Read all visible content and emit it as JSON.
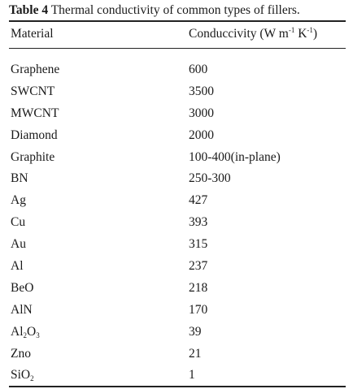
{
  "caption": {
    "label": "Table 4",
    "text": "Thermal conductivity of common types of fillers."
  },
  "header": {
    "material": "Material",
    "value_prefix": "Conduccivity (W m",
    "value_sup1": "-1",
    "value_mid": " K",
    "value_sup2": "-1",
    "value_suffix": ")"
  },
  "rows": [
    {
      "material": "Graphene",
      "value": "600"
    },
    {
      "material": "SWCNT",
      "value": "3500"
    },
    {
      "material": "MWCNT",
      "value": "3000"
    },
    {
      "material": "Diamond",
      "value": "2000"
    },
    {
      "material": "Graphite",
      "value": "100-400(in-plane)"
    },
    {
      "material": "BN",
      "value": "250-300"
    },
    {
      "material": "Ag",
      "value": "427"
    },
    {
      "material": "Cu",
      "value": "393"
    },
    {
      "material": "Au",
      "value": "315"
    },
    {
      "material": "Al",
      "value": "237"
    },
    {
      "material": "BeO",
      "value": "218"
    },
    {
      "material": "AlN",
      "value": "170"
    },
    {
      "material_parts": [
        "Al",
        "2",
        "O",
        "3"
      ],
      "value": "39"
    },
    {
      "material": "Zno",
      "value": "21"
    },
    {
      "material_parts": [
        "SiO",
        "2"
      ],
      "value": "1"
    }
  ]
}
